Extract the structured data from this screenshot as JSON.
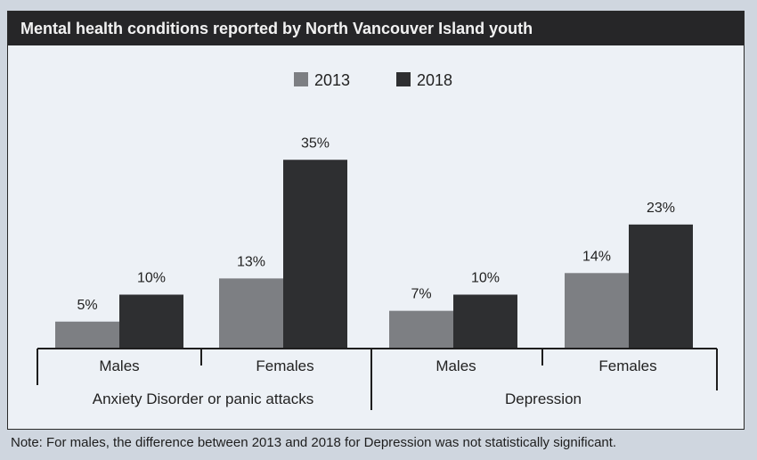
{
  "title": "Mental health conditions reported by North Vancouver Island youth",
  "note": "Note: For males, the difference between 2013 and 2018 for Depression was not statistically significant.",
  "colors": {
    "title_bar": "#262628",
    "background": "#edf1f6",
    "series_2013": "#7d7f83",
    "series_2018": "#2e2f31"
  },
  "chart_data": {
    "type": "bar",
    "title": "Mental health conditions reported by North Vancouver Island youth",
    "groups": [
      {
        "label": "Anxiety Disorder or panic attacks",
        "categories": [
          "Males",
          "Females"
        ]
      },
      {
        "label": "Depression",
        "categories": [
          "Males",
          "Females"
        ]
      }
    ],
    "categories": [
      "Males",
      "Females",
      "Males",
      "Females"
    ],
    "series": [
      {
        "name": "2013",
        "values": [
          5,
          13,
          7,
          14
        ],
        "labels": [
          "5%",
          "13%",
          "7%",
          "14%"
        ]
      },
      {
        "name": "2018",
        "values": [
          10,
          35,
          10,
          23
        ],
        "labels": [
          "10%",
          "35%",
          "10%",
          "23%"
        ]
      }
    ],
    "value_unit": "%",
    "legend_position": "top-center",
    "grid": false
  }
}
